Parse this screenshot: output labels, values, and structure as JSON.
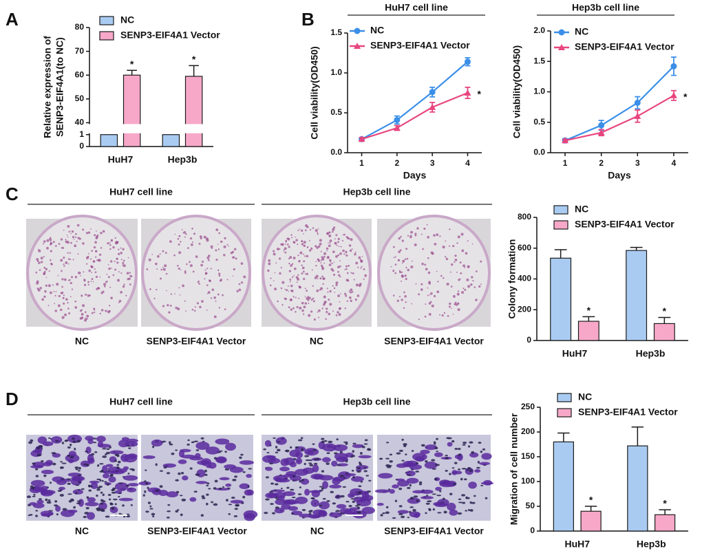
{
  "panel_labels": [
    "A",
    "B",
    "C",
    "D"
  ],
  "colony_images": {
    "groups": [
      "HuH7 cell line",
      "Hep3b cell line"
    ],
    "captions": [
      "NC",
      "SENP3-EIF4A1 Vector",
      "NC",
      "SENP3-EIF4A1 Vector"
    ]
  },
  "migration_images": {
    "groups": [
      "HuH7 cell line",
      "Hep3b cell line"
    ],
    "captions": [
      "NC",
      "SENP3-EIF4A1 Vector",
      "NC",
      "SENP3-EIF4A1 Vector"
    ]
  },
  "chart_data": [
    {
      "type": "bar",
      "ylabel": [
        "Relative expression of",
        "SENP3-EIF4A1(to NC)"
      ],
      "categories": [
        "HuH7",
        "Hep3b"
      ],
      "series": [
        {
          "name": "NC",
          "color": "#a9cbf2",
          "edge": "#1a1a1a",
          "values": [
            1,
            1
          ]
        },
        {
          "name": "SENP3-EIF4A1 Vector",
          "color": "#f7a8c8",
          "edge": "#1a1a1a",
          "values": [
            60,
            59.5
          ],
          "errors": [
            2,
            4.5
          ],
          "labels": [
            "*",
            "*"
          ]
        }
      ],
      "ylim": [
        0,
        80
      ],
      "ybreak": [
        1,
        40
      ],
      "yticks": [
        0,
        1,
        40,
        50,
        60,
        70,
        80
      ]
    },
    {
      "type": "line",
      "title": "HuH7 cell line",
      "xlabel": "Days",
      "ylabel": "Cell viability(OD450)",
      "x": [
        1,
        2,
        3,
        4
      ],
      "series": [
        {
          "name": "NC",
          "color": "#3b8fe8",
          "marker": "circle",
          "values": [
            0.17,
            0.41,
            0.76,
            1.14
          ],
          "errors": [
            0.02,
            0.05,
            0.06,
            0.05
          ]
        },
        {
          "name": "SENP3-EIF4A1 Vector",
          "color": "#e8457f",
          "marker": "triangle",
          "values": [
            0.17,
            0.31,
            0.57,
            0.75
          ],
          "errors": [
            0.02,
            0.03,
            0.06,
            0.07
          ],
          "annotation": "*"
        }
      ],
      "xlim": [
        0.6,
        4.4
      ],
      "xticks": [
        1,
        2,
        3,
        4
      ],
      "ylim": [
        0,
        1.5
      ],
      "yticks": [
        {
          "value": 0,
          "label": "0.0"
        },
        {
          "value": 0.5,
          "label": "0.5"
        },
        {
          "value": 1,
          "label": "1.0"
        },
        {
          "value": 1.5,
          "label": "1.5"
        }
      ]
    },
    {
      "type": "line",
      "title": "Hep3b cell line",
      "xlabel": "Days",
      "ylabel": "Cell viability(OD450)",
      "x": [
        1,
        2,
        3,
        4
      ],
      "series": [
        {
          "name": "NC",
          "color": "#3b8fe8",
          "marker": "circle",
          "values": [
            0.2,
            0.45,
            0.82,
            1.42
          ],
          "errors": [
            0.03,
            0.08,
            0.1,
            0.15
          ]
        },
        {
          "name": "SENP3-EIF4A1 Vector",
          "color": "#e8457f",
          "marker": "triangle",
          "values": [
            0.2,
            0.33,
            0.6,
            0.94
          ],
          "errors": [
            0.02,
            0.05,
            0.1,
            0.08
          ],
          "annotation": "*"
        }
      ],
      "xlim": [
        0.6,
        4.4
      ],
      "xticks": [
        1,
        2,
        3,
        4
      ],
      "ylim": [
        0,
        2
      ],
      "yticks": [
        {
          "value": 0,
          "label": "0.0"
        },
        {
          "value": 0.5,
          "label": "0.5"
        },
        {
          "value": 1,
          "label": "1.0"
        },
        {
          "value": 1.5,
          "label": "1.5"
        },
        {
          "value": 2,
          "label": "2.0"
        }
      ]
    },
    {
      "type": "bar",
      "ylabel": "Colony formation",
      "categories": [
        "HuH7",
        "Hep3b"
      ],
      "series": [
        {
          "name": "NC",
          "color": "#a9cbf2",
          "edge": "#1a1a1a",
          "values": [
            535,
            585
          ],
          "errors": [
            55,
            20
          ]
        },
        {
          "name": "SENP3-EIF4A1 Vector",
          "color": "#f7a8c8",
          "edge": "#1a1a1a",
          "values": [
            125,
            110
          ],
          "errors": [
            30,
            40
          ],
          "labels": [
            "*",
            "*"
          ]
        }
      ],
      "ylim": [
        0,
        800
      ],
      "yticks": [
        0,
        200,
        400,
        600,
        800
      ]
    },
    {
      "type": "bar",
      "ylabel": "Migration of cell number",
      "categories": [
        "HuH7",
        "Hep3b"
      ],
      "series": [
        {
          "name": "NC",
          "color": "#a9cbf2",
          "edge": "#1a1a1a",
          "values": [
            180,
            172
          ],
          "errors": [
            18,
            38
          ]
        },
        {
          "name": "SENP3-EIF4A1 Vector",
          "color": "#f7a8c8",
          "edge": "#1a1a1a",
          "values": [
            40,
            33
          ],
          "errors": [
            10,
            10
          ],
          "labels": [
            "*",
            "*"
          ]
        }
      ],
      "ylim": [
        0,
        250
      ],
      "yticks": [
        0,
        50,
        100,
        150,
        200,
        250
      ]
    }
  ]
}
